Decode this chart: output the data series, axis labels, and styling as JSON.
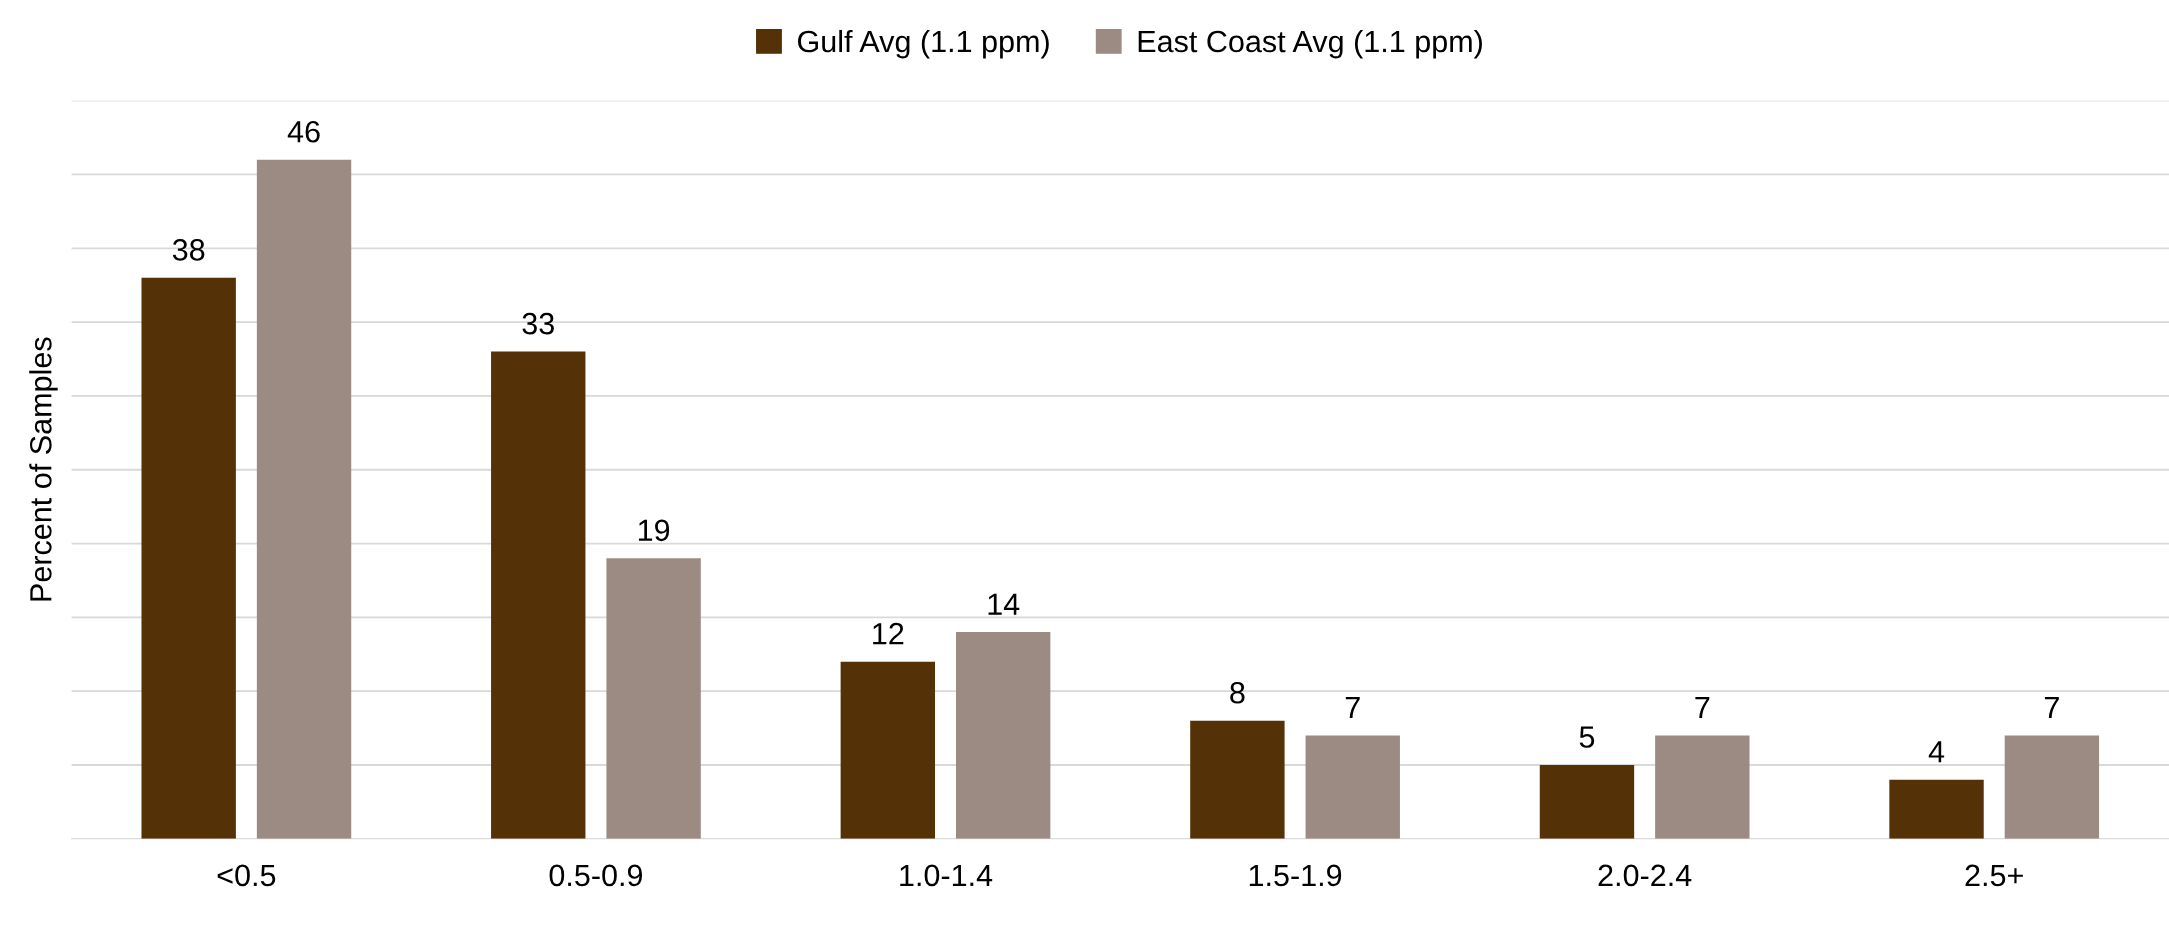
{
  "chart_data": {
    "type": "bar",
    "ylabel": "Percent of Samples",
    "categories": [
      "<0.5",
      "0.5-0.9",
      "1.0-1.4",
      "1.5-1.9",
      "2.0-2.4",
      "2.5+"
    ],
    "series": [
      {
        "name": "Gulf Avg (1.1 ppm)",
        "color": "#553107",
        "values": [
          38,
          33,
          12,
          8,
          5,
          4
        ]
      },
      {
        "name": "East Coast Avg (1.1 ppm)",
        "color": "#9b8b82",
        "values": [
          46,
          19,
          14,
          7,
          7,
          7
        ]
      }
    ],
    "ylim": [
      0,
      50
    ],
    "yticks": [
      {
        "value": 0,
        "label": null
      },
      {
        "value": 5,
        "label": null
      },
      {
        "value": 10,
        "label": null
      },
      {
        "value": 15,
        "label": null
      },
      {
        "value": 20,
        "label": null
      },
      {
        "value": 25,
        "label": null
      },
      {
        "value": 30,
        "label": null
      },
      {
        "value": 35,
        "label": null
      },
      {
        "value": 40,
        "label": null
      },
      {
        "value": 45,
        "label": null
      },
      {
        "value": 50,
        "label": null
      }
    ],
    "tick_labels": "x",
    "grid": "y",
    "legend": "top",
    "data_labels": true
  }
}
